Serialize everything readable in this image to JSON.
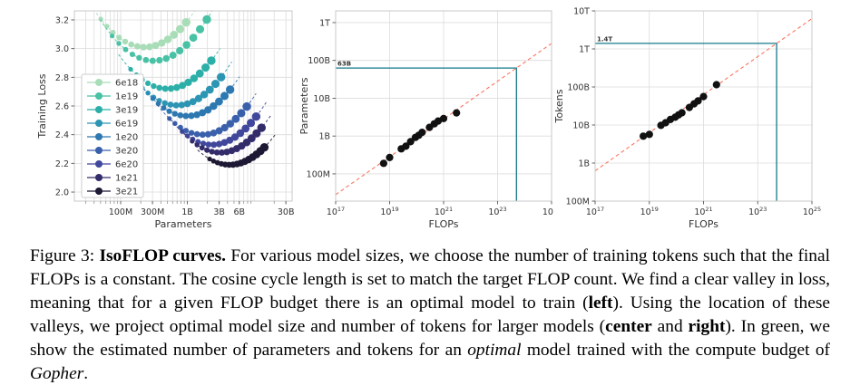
{
  "figure": {
    "caption_segments": [
      {
        "t": "Figure 3: "
      },
      {
        "t": "IsoFLOP curves.",
        "b": true
      },
      {
        "t": " For various model sizes, we choose the number of training tokens such that the final FLOPs is a constant. The cosine cycle length is set to match the target FLOP count. We find a clear valley in loss, meaning that for a given FLOP budget there is an optimal model to train ("
      },
      {
        "t": "left",
        "b": true
      },
      {
        "t": "). Using the location of these valleys, we project optimal model size and number of tokens for larger models ("
      },
      {
        "t": "center",
        "b": true
      },
      {
        "t": " and "
      },
      {
        "t": "right",
        "b": true
      },
      {
        "t": "). In green, we show the estimated number of parameters and tokens for an "
      },
      {
        "t": "optimal",
        "i": true
      },
      {
        "t": " model trained with the compute budget of "
      },
      {
        "t": "Gopher",
        "i": true
      },
      {
        "t": "."
      }
    ]
  },
  "colors": {
    "trend_red": "#fa7662",
    "projection_teal": "#13798a",
    "grid": "#dcdcdc",
    "frame": "#c9c9c9",
    "scatter_dot": "#111111",
    "tick_text": "#333333"
  },
  "chart_data": [
    {
      "id": "isoflop",
      "type": "line",
      "title": "",
      "xlabel": "Parameters",
      "ylabel": "Training Loss",
      "xscale": "log",
      "xlim_log": [
        7.306,
        10.57
      ],
      "ylim": [
        1.937,
        3.263
      ],
      "xticks": [
        {
          "v": 100000000.0,
          "t": "100M"
        },
        {
          "v": 300000000.0,
          "t": "300M"
        },
        {
          "v": 1000000000.0,
          "t": "1B"
        },
        {
          "v": 3000000000.0,
          "t": "3B"
        },
        {
          "v": 6000000000.0,
          "t": "6B"
        },
        {
          "v": 30000000000.0,
          "t": "30B"
        }
      ],
      "yticks": [
        2.0,
        2.2,
        2.4,
        2.6,
        2.8,
        3.0,
        3.2
      ],
      "legend_position": "upper left",
      "series": [
        {
          "label": "6e18",
          "flops": 6e+18,
          "color": "#a8ddb7",
          "n_opt": 230000000.0,
          "loss_min": 3.01,
          "curvature": 0.45,
          "dot_range_dec": [
            -0.66,
            0.62
          ],
          "curve_range_dec": [
            -0.85,
            0.78
          ]
        },
        {
          "label": "1e19",
          "flops": 1e+19,
          "color": "#49c1a4",
          "n_opt": 310000000.0,
          "loss_min": 2.915,
          "curvature": 0.45,
          "dot_range_dec": [
            -0.62,
            0.8
          ],
          "curve_range_dec": [
            -0.8,
            0.95
          ]
        },
        {
          "label": "3e19",
          "flops": 3e+19,
          "color": "#2cafa8",
          "n_opt": 500000000.0,
          "loss_min": 2.72,
          "curvature": 0.45,
          "dot_range_dec": [
            -0.55,
            0.66
          ],
          "curve_range_dec": [
            -0.73,
            0.82
          ]
        },
        {
          "label": "6e19",
          "flops": 6e+19,
          "color": "#2c95b3",
          "n_opt": 700000000.0,
          "loss_min": 2.605,
          "curvature": 0.45,
          "dot_range_dec": [
            -0.52,
            0.66
          ],
          "curve_range_dec": [
            -0.7,
            0.82
          ]
        },
        {
          "label": "1e20",
          "flops": 1e+20,
          "color": "#2d78b0",
          "n_opt": 1000000000.0,
          "loss_min": 2.53,
          "curvature": 0.45,
          "dot_range_dec": [
            -0.52,
            0.64
          ],
          "curve_range_dec": [
            -0.7,
            0.8
          ]
        },
        {
          "label": "3e20",
          "flops": 3e+20,
          "color": "#3a60ac",
          "n_opt": 1700000000.0,
          "loss_min": 2.4,
          "curvature": 0.45,
          "dot_range_dec": [
            -0.5,
            0.66
          ],
          "curve_range_dec": [
            -0.68,
            0.82
          ]
        },
        {
          "label": "6e20",
          "flops": 6e+20,
          "color": "#41479b",
          "n_opt": 2350000000.0,
          "loss_min": 2.33,
          "curvature": 0.45,
          "dot_range_dec": [
            -0.45,
            0.66
          ],
          "curve_range_dec": [
            -0.63,
            0.82
          ]
        },
        {
          "label": "1e21",
          "flops": 1e+21,
          "color": "#332c6b",
          "n_opt": 3100000000.0,
          "loss_min": 2.275,
          "curvature": 0.45,
          "dot_range_dec": [
            -0.42,
            0.62
          ],
          "curve_range_dec": [
            -0.6,
            0.78
          ]
        },
        {
          "label": "3e21",
          "flops": 3e+21,
          "color": "#1d1833",
          "n_opt": 4300000000.0,
          "loss_min": 2.19,
          "curvature": 0.45,
          "dot_range_dec": [
            -0.3,
            0.52
          ],
          "curve_range_dec": [
            -0.48,
            0.68
          ]
        }
      ]
    },
    {
      "id": "params_vs_flops",
      "type": "scatter",
      "title": "",
      "xlabel": "FLOPs",
      "ylabel": "Parameters",
      "xscale": "log",
      "yscale": "log",
      "xlim_log": [
        17,
        25
      ],
      "ylim_log": [
        7.28,
        12.31
      ],
      "xtick_exponents": [
        17,
        19,
        21,
        23,
        25
      ],
      "yticks": [
        {
          "v": 100000000.0,
          "t": "100M"
        },
        {
          "v": 1000000000.0,
          "t": "1B"
        },
        {
          "v": 10000000000.0,
          "t": "10B"
        },
        {
          "v": 100000000000.0,
          "t": "100B"
        },
        {
          "v": 1000000000000.0,
          "t": "1T"
        }
      ],
      "points": {
        "flops": [
          6e+18,
          1e+19,
          2.7e+19,
          4e+19,
          6e+19,
          9e+19,
          1.2e+20,
          1.6e+20,
          3e+20,
          4.5e+20,
          6.3e+20,
          1e+21,
          3e+21
        ],
        "values": [
          190000000.0,
          270000000.0,
          460000000.0,
          540000000.0,
          710000000.0,
          920000000.0,
          1050000000.0,
          1250000000.0,
          1700000000.0,
          2100000000.0,
          2500000000.0,
          2900000000.0,
          4100000000.0
        ]
      },
      "trend": {
        "slope": 0.5,
        "through_flops": 5e+23,
        "through_value": 63000000000.0
      },
      "projection": {
        "flops": 5e+23,
        "value": 63000000000.0,
        "label": "63B"
      }
    },
    {
      "id": "tokens_vs_flops",
      "type": "scatter",
      "title": "",
      "xlabel": "FLOPs",
      "ylabel": "Tokens",
      "xscale": "log",
      "yscale": "log",
      "xlim_log": [
        17,
        25
      ],
      "ylim_log": [
        8,
        13
      ],
      "xtick_exponents": [
        17,
        19,
        21,
        23,
        25
      ],
      "yticks": [
        {
          "v": 100000000.0,
          "t": "100M"
        },
        {
          "v": 1000000000.0,
          "t": "1B"
        },
        {
          "v": 10000000000.0,
          "t": "10B"
        },
        {
          "v": 100000000000.0,
          "t": "100B"
        },
        {
          "v": 1000000000000.0,
          "t": "1T"
        },
        {
          "v": 10000000000000.0,
          "t": "10T"
        }
      ],
      "points": {
        "flops": [
          6e+18,
          1e+19,
          2.7e+19,
          4e+19,
          6e+19,
          9e+19,
          1.2e+20,
          1.6e+20,
          3e+20,
          4.5e+20,
          6.3e+20,
          1e+21,
          3e+21
        ],
        "values": [
          5100000000.0,
          5700000000.0,
          9800000000.0,
          11500000000.0,
          14000000000.0,
          16000000000.0,
          18500000000.0,
          21000000000.0,
          29000000000.0,
          36000000000.0,
          43000000000.0,
          56000000000.0,
          115000000000.0
        ]
      },
      "trend": {
        "slope": 0.5,
        "through_flops": 5e+23,
        "through_value": 1400000000000.0
      },
      "projection": {
        "flops": 5e+23,
        "value": 1400000000000.0,
        "label": "1.4T"
      }
    }
  ]
}
